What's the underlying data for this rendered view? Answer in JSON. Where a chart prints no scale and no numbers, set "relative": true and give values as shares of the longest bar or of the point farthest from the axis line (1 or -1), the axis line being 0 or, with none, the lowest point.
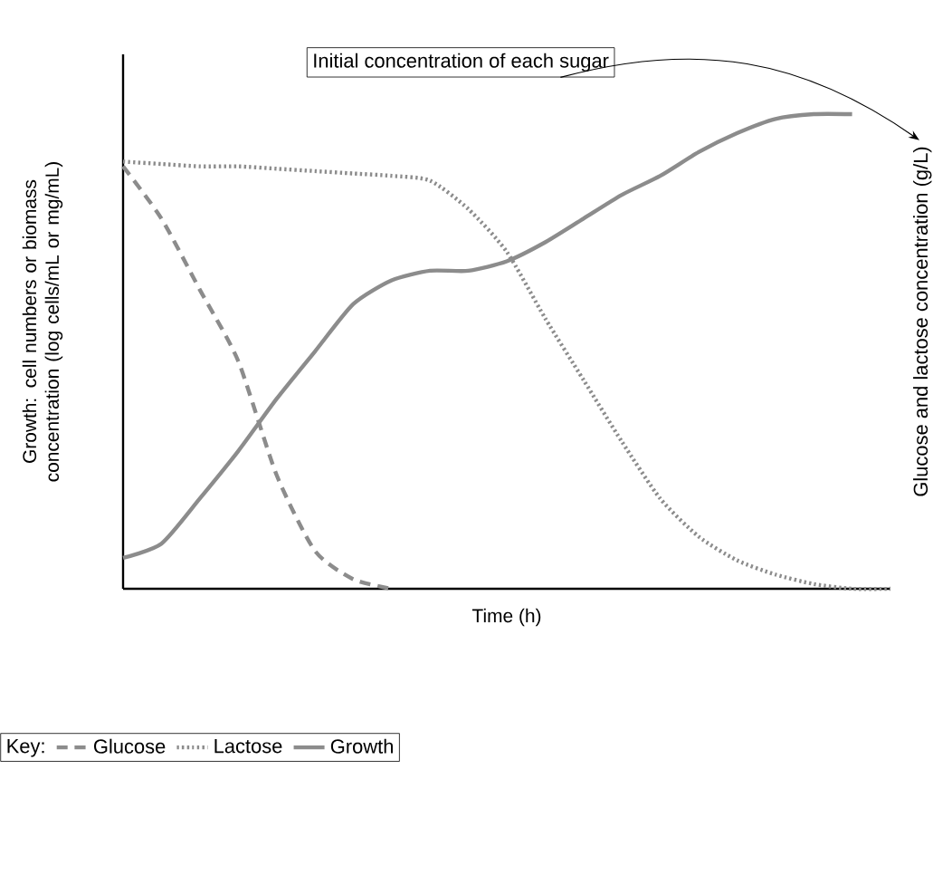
{
  "chart_data": {
    "type": "line",
    "relative": true,
    "xlabel": "Time (h)",
    "ylabel": "Growth: cell numbers or biomass concentration (log cells/mL or mg/mL)",
    "y2label": "Glucose and lactose concentration (g/L)",
    "legend_title": "Key:",
    "legend": "bottom",
    "annotations": [
      "Initial concentration of each sugar"
    ],
    "categories": [
      null,
      null,
      null,
      null,
      null,
      null,
      null,
      null,
      null,
      null,
      null,
      null,
      null,
      null,
      null,
      null,
      null,
      null,
      null,
      null,
      null
    ],
    "series": [
      {
        "name": "Glucose",
        "color": "#8c8c8c",
        "line_style": "dashed",
        "values": [
          0.89,
          0.78,
          0.63,
          0.48,
          0.24,
          0.08,
          0.02,
          0.0,
          null,
          null,
          null,
          null,
          null,
          null,
          null,
          null,
          null,
          null,
          null,
          null,
          null
        ]
      },
      {
        "name": "Lactose",
        "color": "#8c8c8c",
        "line_style": "dotted",
        "values": [
          0.9,
          0.895,
          0.89,
          0.89,
          0.885,
          0.88,
          0.875,
          0.87,
          0.86,
          0.8,
          0.71,
          0.57,
          0.44,
          0.31,
          0.19,
          0.11,
          0.06,
          0.03,
          0.01,
          0.0,
          0.0
        ]
      },
      {
        "name": "Growth",
        "color": "#8c8c8c",
        "line_style": "solid",
        "values": [
          0.065,
          0.095,
          0.19,
          0.29,
          0.4,
          0.5,
          0.6,
          0.65,
          0.67,
          0.67,
          0.69,
          0.73,
          0.78,
          0.83,
          0.87,
          0.92,
          0.96,
          0.99,
          1.0,
          1.0,
          null
        ]
      }
    ]
  }
}
